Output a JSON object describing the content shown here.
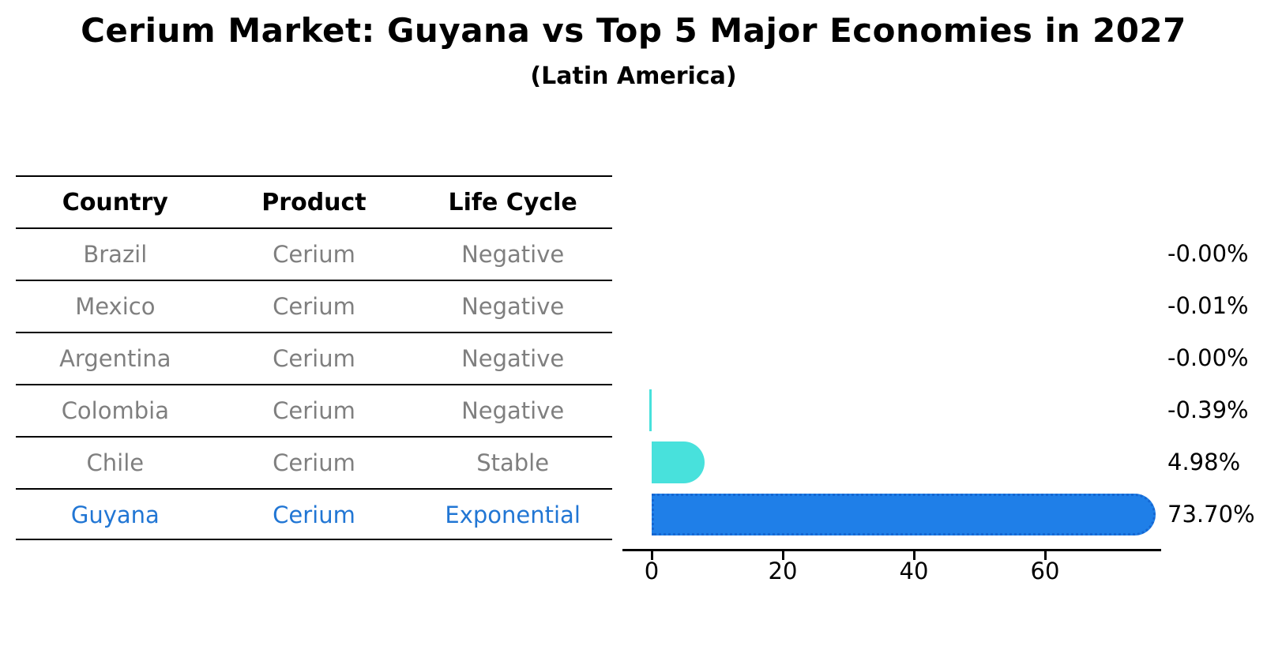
{
  "title": "Cerium Market: Guyana vs Top 5 Major Economies in 2027",
  "subtitle": "(Latin America)",
  "table": {
    "headers": [
      "Country",
      "Product",
      "Life Cycle"
    ],
    "rows": [
      {
        "country": "Brazil",
        "product": "Cerium",
        "life_cycle": "Negative",
        "highlight": false
      },
      {
        "country": "Mexico",
        "product": "Cerium",
        "life_cycle": "Negative",
        "highlight": false
      },
      {
        "country": "Argentina",
        "product": "Cerium",
        "life_cycle": "Negative",
        "highlight": false
      },
      {
        "country": "Colombia",
        "product": "Cerium",
        "life_cycle": "Negative",
        "highlight": false
      },
      {
        "country": "Chile",
        "product": "Cerium",
        "life_cycle": "Stable",
        "highlight": false
      },
      {
        "country": "Guyana",
        "product": "Cerium",
        "life_cycle": "Exponential",
        "highlight": true
      }
    ]
  },
  "chart_data": {
    "type": "bar",
    "orientation": "horizontal",
    "title": "Cerium Market: Guyana vs Top 5 Major Economies in 2027",
    "subtitle": "(Latin America)",
    "categories": [
      "Brazil",
      "Mexico",
      "Argentina",
      "Colombia",
      "Chile",
      "Guyana"
    ],
    "values": [
      -0.0,
      -0.01,
      -0.0,
      -0.39,
      4.98,
      73.7
    ],
    "value_labels": [
      "-0.00%",
      "-0.01%",
      "-0.00%",
      "-0.39%",
      "4.98%",
      "73.70%"
    ],
    "highlight_category": "Guyana",
    "x_ticks": [
      "0",
      "20",
      "40",
      "60"
    ],
    "x_tick_values": [
      0,
      20,
      40,
      60
    ],
    "xlim": [
      -4.5,
      77.7
    ],
    "grid": false,
    "legend": null,
    "colors": {
      "bar_default": "#48E1DC",
      "bar_highlight": "#1F7FE8",
      "bar_highlight_edge": "#1567D2",
      "row_text": "#7F7F7F",
      "highlight_text": "#2176D4",
      "axis": "#000000",
      "label_text": "#000000"
    }
  }
}
